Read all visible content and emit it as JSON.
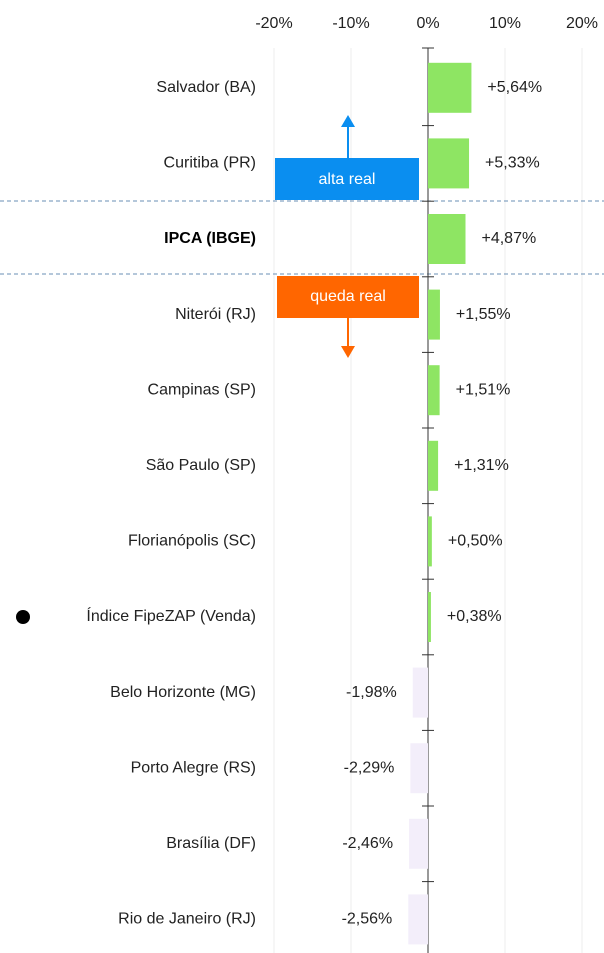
{
  "chart_data": {
    "type": "bar",
    "orientation": "horizontal",
    "categories": [
      "Salvador (BA)",
      "Curitiba (PR)",
      "IPCA (IBGE)",
      "Niterói (RJ)",
      "Campinas (SP)",
      "São Paulo (SP)",
      "Florianópolis (SC)",
      "Índice FipeZAP (Venda)",
      "Belo Horizonte (MG)",
      "Porto Alegre (RS)",
      "Brasília (DF)",
      "Rio de Janeiro (RJ)"
    ],
    "values": [
      5.64,
      5.33,
      4.87,
      1.55,
      1.51,
      1.31,
      0.5,
      0.38,
      -1.98,
      -2.29,
      -2.46,
      -2.56
    ],
    "value_labels": [
      "+5,64%",
      "+5,33%",
      "+4,87%",
      "+1,55%",
      "+1,51%",
      "+1,31%",
      "+0,50%",
      "+0,38%",
      "-1,98%",
      "-2,29%",
      "-2,46%",
      "-2,56%"
    ],
    "positive_color": "#8ee563",
    "negative_color": "#f3eefa",
    "xlim": [
      -20,
      20
    ],
    "xticks": [
      {
        "value": -20,
        "label": "-20%"
      },
      {
        "value": -10,
        "label": "-10%"
      },
      {
        "value": 0,
        "label": "0%"
      },
      {
        "value": 10,
        "label": "10%"
      },
      {
        "value": 20,
        "label": "20%"
      }
    ],
    "grid": true,
    "annotations": [
      "alta real",
      "queda real"
    ]
  }
}
